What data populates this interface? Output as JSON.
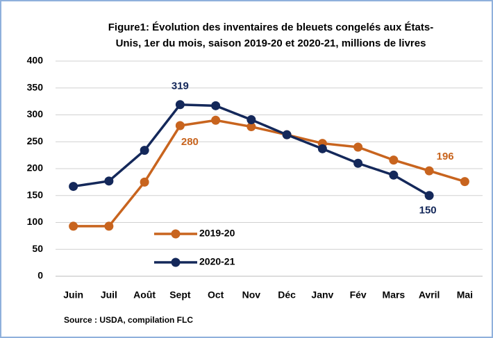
{
  "chart_data": {
    "type": "line",
    "title": [
      "Figure1:  Évolution des inventaires de bleuets congelés aux États-",
      "Unis, 1er du mois, saison 2019-20 et 2020-21, millions de livres"
    ],
    "categories": [
      "Juin",
      "Juil",
      "Août",
      "Sept",
      "Oct",
      "Nov",
      "Déc",
      "Janv",
      "Fév",
      "Mars",
      "Avril",
      "Mai"
    ],
    "series": [
      {
        "name": "2019-20",
        "color": "#c8641e",
        "values": [
          93,
          93,
          175,
          280,
          290,
          278,
          263,
          247,
          240,
          216,
          196,
          176
        ]
      },
      {
        "name": "2020-21",
        "color": "#14285a",
        "values": [
          167,
          177,
          234,
          319,
          317,
          291,
          263,
          237,
          210,
          188,
          150,
          null
        ]
      }
    ],
    "ylim": [
      0,
      400
    ],
    "yticks": [
      0,
      50,
      100,
      150,
      200,
      250,
      300,
      350,
      400
    ],
    "grid": true,
    "source": "Source : USDA, compilation FLC"
  }
}
